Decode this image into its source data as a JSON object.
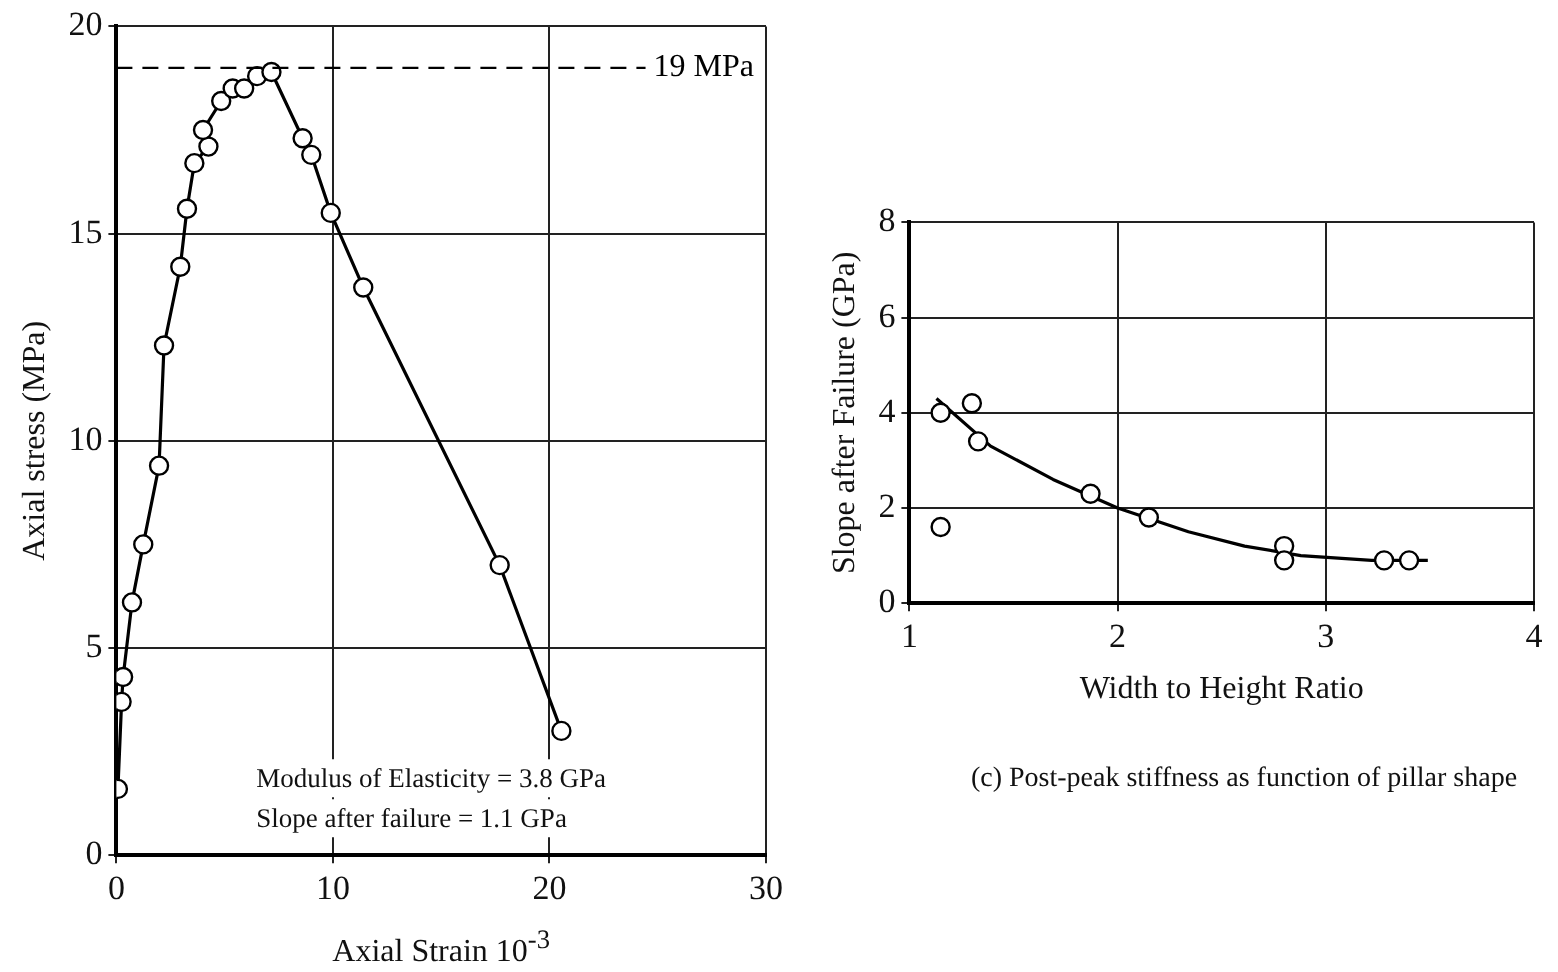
{
  "chart_data": [
    {
      "type": "line",
      "xlabel": "Axial Strain 10$^{-3}$",
      "ylabel": "Axial stress (MPa)",
      "marker": "circle",
      "grid": true,
      "xlim": [
        0,
        30
      ],
      "xticks": [
        0,
        10,
        20,
        30
      ],
      "ylim": [
        0,
        20
      ],
      "yticks": [
        0,
        5,
        10,
        15,
        20
      ],
      "series": [
        {
          "color": "#000000",
          "x": [
            0.07,
            0.24,
            0.31,
            0.72,
            1.24,
            1.97,
            2.2,
            2.95,
            3.26,
            3.6,
            4.25,
            4.0,
            4.84,
            5.37,
            5.9,
            6.5,
            7.16,
            8.6,
            9.0,
            9.9,
            11.4,
            17.7,
            20.55
          ],
          "values": [
            1.6,
            3.7,
            4.3,
            6.1,
            7.5,
            9.4,
            12.3,
            14.2,
            15.6,
            16.7,
            17.1,
            17.5,
            18.2,
            18.5,
            18.5,
            18.8,
            18.9,
            17.3,
            16.9,
            15.5,
            13.7,
            7.0,
            3.0
          ]
        }
      ],
      "ref_lines": [
        {
          "axis": "y",
          "value": 19,
          "label": "19 MPa",
          "line_style": "dashed",
          "color": "#000000"
        }
      ],
      "annotations": [
        "Modulus of Elasticity = 3.8 GPa",
        "Slope after failure = 1.1 GPa"
      ]
    },
    {
      "type": "scatter",
      "xlabel": "Width to Height Ratio",
      "ylabel": "Slope after Failure (GPa)",
      "grid": true,
      "xlim": [
        1,
        4
      ],
      "xticks": [
        1,
        2,
        3,
        4
      ],
      "ylim": [
        0,
        8
      ],
      "yticks": [
        0,
        2,
        4,
        6,
        8
      ],
      "series": [
        {
          "marker": "circle",
          "color": "#000000",
          "x": [
            1.15,
            1.15,
            1.3,
            1.33,
            1.87,
            2.15,
            2.8,
            2.8,
            3.28,
            3.4
          ],
          "values": [
            4.0,
            1.6,
            4.2,
            3.4,
            2.3,
            1.8,
            1.2,
            0.9,
            0.9,
            0.9
          ]
        },
        {
          "type": "line",
          "marker": "none",
          "color": "#000000",
          "x": [
            1.13,
            1.39,
            1.69,
            2.0,
            2.34,
            2.61,
            2.88,
            3.22,
            3.49
          ],
          "values": [
            4.3,
            3.3,
            2.6,
            2.0,
            1.5,
            1.2,
            1.0,
            0.9,
            0.9
          ]
        }
      ],
      "annotations": [
        "(c) Post-peak stiffness as function of pillar shape"
      ]
    }
  ]
}
